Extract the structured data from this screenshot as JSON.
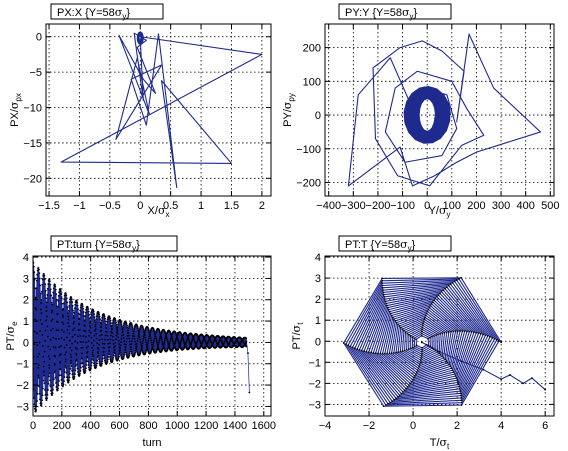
{
  "figure": {
    "accent_color": "#1f2a8f",
    "marker_color": "#000000"
  },
  "chart_data": [
    {
      "type": "line",
      "title_main": "PX:X {Y=58",
      "title_sym": "σ",
      "title_sub": "y",
      "title_end": "}",
      "xlabel_main": "X/",
      "xlabel_sym": "σ",
      "xlabel_sub": "x",
      "ylabel_main": "PX/",
      "ylabel_sym": "σ",
      "ylabel_sub": "px",
      "xlim": [
        -1.55,
        2.15
      ],
      "ylim": [
        -22.5,
        1.8
      ],
      "xticks": [
        -1.5,
        -1,
        -0.5,
        0,
        0.5,
        1,
        1.5,
        2
      ],
      "xtick_labels": [
        "−1.5",
        "−1",
        "−0.5",
        "0",
        "0.5",
        "1",
        "1.5",
        "2"
      ],
      "yticks": [
        -20,
        -15,
        -10,
        -5,
        0
      ],
      "ytick_labels": [
        "−20",
        "−15",
        "−10",
        "−5",
        "0"
      ],
      "grid": true,
      "series": [
        {
          "pattern": "points",
          "color": "#1f2a8f",
          "points": [
            [
              0,
              0
            ],
            [
              2.0,
              -2.5
            ],
            [
              -1.3,
              -17.7
            ],
            [
              1.5,
              -17.9
            ],
            [
              0.35,
              -6.2
            ],
            [
              0.6,
              -21.3
            ],
            [
              0.3,
              0.4
            ],
            [
              0.1,
              -12.5
            ],
            [
              -0.15,
              -6.0
            ],
            [
              0.35,
              -4.0
            ],
            [
              -0.4,
              -14.5
            ],
            [
              -0.05,
              -3.0
            ],
            [
              0.15,
              -11.0
            ],
            [
              -0.35,
              0.2
            ],
            [
              0.05,
              -6.0
            ],
            [
              0.25,
              -8.0
            ],
            [
              -0.05,
              -1.5
            ],
            [
              0.1,
              -0.5
            ],
            [
              -0.1,
              0.5
            ],
            [
              0.05,
              -9.0
            ],
            [
              0.0,
              -0.2
            ]
          ]
        },
        {
          "pattern": "spiral",
          "color": "#1f2a8f",
          "markers": false,
          "center": [
            0.0,
            -0.2
          ],
          "r_start": [
            0.05,
            0.9
          ],
          "r_end": [
            0.02,
            0.35
          ],
          "turns": 25,
          "step": 0.52
        }
      ]
    },
    {
      "type": "line",
      "title_main": "PY:Y {Y=58",
      "title_sym": "σ",
      "title_sub": "y",
      "title_end": "}",
      "xlabel_main": "Y/",
      "xlabel_sym": "σ",
      "xlabel_sub": "y",
      "ylabel_main": "PY/",
      "ylabel_sym": "σ",
      "ylabel_sub": "py",
      "xlim": [
        -415,
        515
      ],
      "ylim": [
        -240,
        270
      ],
      "xticks": [
        -400,
        -300,
        -200,
        -100,
        0,
        100,
        200,
        300,
        400,
        500
      ],
      "xtick_labels": [
        "−400",
        "−300",
        "−200",
        "−100",
        "0",
        "100",
        "200",
        "300",
        "400",
        "500"
      ],
      "yticks": [
        -200,
        -100,
        0,
        100,
        200
      ],
      "ytick_labels": [
        "−200",
        "−100",
        "0",
        "100",
        "200"
      ],
      "grid": true,
      "series": [
        {
          "pattern": "points",
          "color": "#1f2a8f",
          "points": [
            [
              -60,
              20
            ],
            [
              -150,
              170
            ],
            [
              -280,
              60
            ],
            [
              -320,
              -210
            ],
            [
              -110,
              -95
            ],
            [
              -60,
              -210
            ],
            [
              30,
              -180
            ],
            [
              120,
              -140
            ],
            [
              200,
              -110
            ],
            [
              460,
              -50
            ],
            [
              270,
              80
            ],
            [
              170,
              240
            ],
            [
              120,
              -20
            ],
            [
              150,
              130
            ],
            [
              60,
              190
            ],
            [
              -20,
              220
            ],
            [
              -110,
              200
            ],
            [
              -220,
              140
            ],
            [
              -210,
              -70
            ],
            [
              -120,
              -180
            ],
            [
              10,
              -210
            ],
            [
              140,
              -90
            ],
            [
              230,
              -60
            ],
            [
              160,
              20
            ],
            [
              100,
              100
            ],
            [
              -40,
              130
            ],
            [
              -130,
              80
            ],
            [
              -170,
              -50
            ],
            [
              -90,
              -140
            ],
            [
              60,
              -120
            ],
            [
              120,
              -40
            ],
            [
              80,
              60
            ],
            [
              -20,
              80
            ]
          ]
        },
        {
          "pattern": "spiral",
          "color": "#1f2a8f",
          "markers": false,
          "center": [
            0,
            0
          ],
          "r_start": [
            95,
            85
          ],
          "r_end": [
            32,
            48
          ],
          "turns": 38,
          "step": 0.38
        }
      ]
    },
    {
      "type": "line",
      "title_main": "PT:turn {Y=58",
      "title_sym": "σ",
      "title_sub": "y",
      "title_end": "}",
      "xlabel_main": "turn",
      "xlabel_sym": "",
      "xlabel_sub": "",
      "ylabel_main": "PT/",
      "ylabel_sym": "σ",
      "ylabel_sub": "e",
      "xlim": [
        0,
        1650
      ],
      "ylim": [
        -3.45,
        4.05
      ],
      "xticks": [
        0,
        200,
        400,
        600,
        800,
        1000,
        1200,
        1400,
        1600
      ],
      "xtick_labels": [
        "0",
        "200",
        "400",
        "600",
        "800",
        "1000",
        "1200",
        "1400",
        "1600"
      ],
      "yticks": [
        -3,
        -2,
        -1,
        0,
        1,
        2,
        3,
        4
      ],
      "ytick_labels": [
        "−3",
        "−2",
        "−1",
        "0",
        "1",
        "2",
        "3",
        "4"
      ],
      "grid": true,
      "series": [
        {
          "pattern": "oscillation",
          "color": "#1f2a8f",
          "markers": true,
          "turns": 1480,
          "amp_start": 3.6,
          "amp_end": 0.12,
          "decay": 0.0024,
          "offset_start": 0.2,
          "offset_end": 0.0,
          "omega": 2.15,
          "tail": [
            [
              1480,
              0.05
            ],
            [
              1490,
              -0.5
            ],
            [
              1500,
              -2.35
            ]
          ]
        }
      ]
    },
    {
      "type": "line",
      "title_main": "PT:T {Y=58",
      "title_sym": "σ",
      "title_sub": "y",
      "title_end": "}",
      "xlabel_main": "T/",
      "xlabel_sym": "σ",
      "xlabel_sub": "t",
      "ylabel_main": "PT/",
      "ylabel_sym": "σ",
      "ylabel_sub": "t",
      "xlim": [
        -4,
        6.4
      ],
      "ylim": [
        -3.55,
        4.05
      ],
      "xticks": [
        -4,
        -2,
        0,
        2,
        4,
        6
      ],
      "xtick_labels": [
        "−4",
        "−2",
        "0",
        "2",
        "4",
        "6"
      ],
      "yticks": [
        -3,
        -2,
        -1,
        0,
        1,
        2,
        3,
        4
      ],
      "ytick_labels": [
        "−3",
        "−2",
        "−1",
        "0",
        "1",
        "2",
        "3",
        "4"
      ],
      "grid": true,
      "series": [
        {
          "pattern": "spiral",
          "color": "#1f2a8f",
          "markers": true,
          "center": [
            0.4,
            -0.05
          ],
          "r_start": [
            3.6,
            3.55
          ],
          "r_end": [
            0.25,
            0.25
          ],
          "turns": 34,
          "step": 1.05,
          "tail": [
            [
              0.4,
              -0.05
            ],
            [
              1.2,
              -0.5
            ],
            [
              2.2,
              -0.95
            ],
            [
              3.2,
              -1.35
            ],
            [
              4.0,
              -1.8
            ],
            [
              4.4,
              -1.6
            ],
            [
              5.0,
              -2.0
            ],
            [
              5.4,
              -1.75
            ],
            [
              6.0,
              -2.3
            ]
          ]
        }
      ]
    }
  ]
}
